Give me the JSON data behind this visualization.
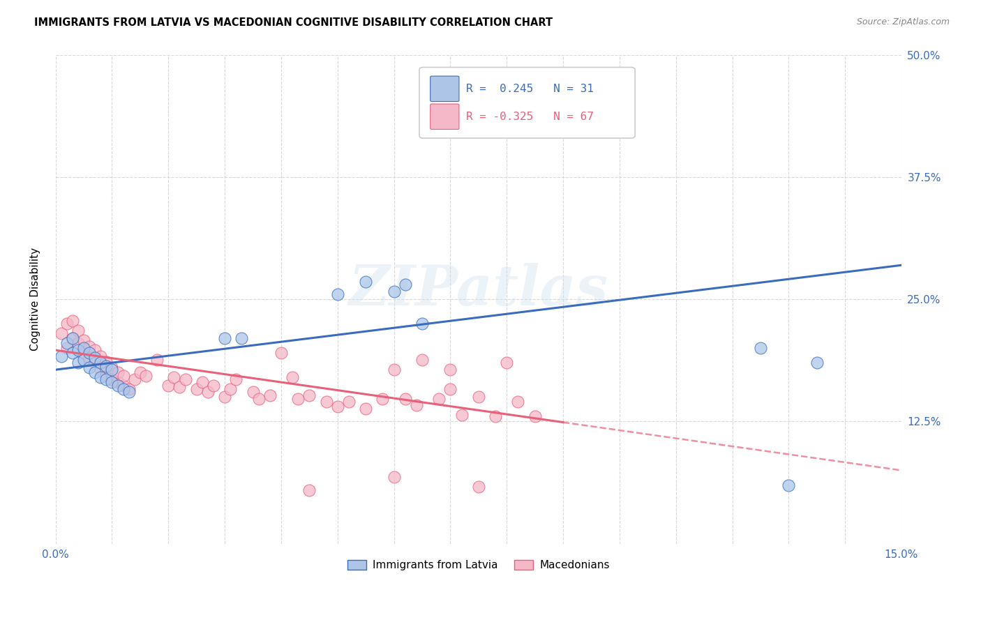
{
  "title": "IMMIGRANTS FROM LATVIA VS MACEDONIAN COGNITIVE DISABILITY CORRELATION CHART",
  "source": "Source: ZipAtlas.com",
  "ylabel": "Cognitive Disability",
  "xlim": [
    0.0,
    0.15
  ],
  "ylim": [
    0.0,
    0.5
  ],
  "blue_color": "#adc6e8",
  "pink_color": "#f5b8c8",
  "blue_line_color": "#3a6bbf",
  "pink_line_color": "#e8607a",
  "watermark": "ZIPatlas",
  "blue_scatter_x": [
    0.001,
    0.002,
    0.003,
    0.003,
    0.004,
    0.004,
    0.005,
    0.005,
    0.006,
    0.006,
    0.007,
    0.007,
    0.008,
    0.008,
    0.009,
    0.009,
    0.01,
    0.01,
    0.011,
    0.012,
    0.013,
    0.03,
    0.033,
    0.055,
    0.06,
    0.062,
    0.065,
    0.125,
    0.13,
    0.135,
    0.05
  ],
  "blue_scatter_y": [
    0.192,
    0.205,
    0.195,
    0.21,
    0.185,
    0.198,
    0.188,
    0.2,
    0.18,
    0.195,
    0.175,
    0.19,
    0.17,
    0.185,
    0.168,
    0.182,
    0.165,
    0.178,
    0.162,
    0.158,
    0.155,
    0.21,
    0.21,
    0.268,
    0.258,
    0.265,
    0.225,
    0.2,
    0.06,
    0.185,
    0.255
  ],
  "pink_scatter_x": [
    0.001,
    0.002,
    0.002,
    0.003,
    0.003,
    0.004,
    0.004,
    0.005,
    0.005,
    0.006,
    0.006,
    0.007,
    0.007,
    0.008,
    0.008,
    0.009,
    0.009,
    0.01,
    0.01,
    0.011,
    0.011,
    0.012,
    0.012,
    0.013,
    0.014,
    0.015,
    0.016,
    0.018,
    0.02,
    0.021,
    0.022,
    0.023,
    0.025,
    0.026,
    0.027,
    0.028,
    0.03,
    0.031,
    0.032,
    0.035,
    0.036,
    0.038,
    0.04,
    0.042,
    0.043,
    0.045,
    0.048,
    0.05,
    0.052,
    0.055,
    0.058,
    0.06,
    0.062,
    0.064,
    0.065,
    0.068,
    0.07,
    0.072,
    0.075,
    0.078,
    0.08,
    0.082,
    0.085,
    0.06,
    0.045,
    0.07,
    0.075
  ],
  "pink_scatter_y": [
    0.215,
    0.225,
    0.2,
    0.21,
    0.228,
    0.205,
    0.218,
    0.195,
    0.208,
    0.19,
    0.202,
    0.185,
    0.198,
    0.178,
    0.192,
    0.172,
    0.186,
    0.168,
    0.18,
    0.165,
    0.175,
    0.162,
    0.172,
    0.158,
    0.168,
    0.175,
    0.172,
    0.188,
    0.162,
    0.17,
    0.16,
    0.168,
    0.158,
    0.165,
    0.155,
    0.162,
    0.15,
    0.158,
    0.168,
    0.155,
    0.148,
    0.152,
    0.195,
    0.17,
    0.148,
    0.152,
    0.145,
    0.14,
    0.145,
    0.138,
    0.148,
    0.068,
    0.148,
    0.142,
    0.188,
    0.148,
    0.158,
    0.132,
    0.15,
    0.13,
    0.185,
    0.145,
    0.13,
    0.178,
    0.055,
    0.178,
    0.058
  ],
  "legend_r1_color": "#3a6bbf",
  "legend_r2_color": "#e8607a",
  "legend_box_edge": "#cccccc"
}
